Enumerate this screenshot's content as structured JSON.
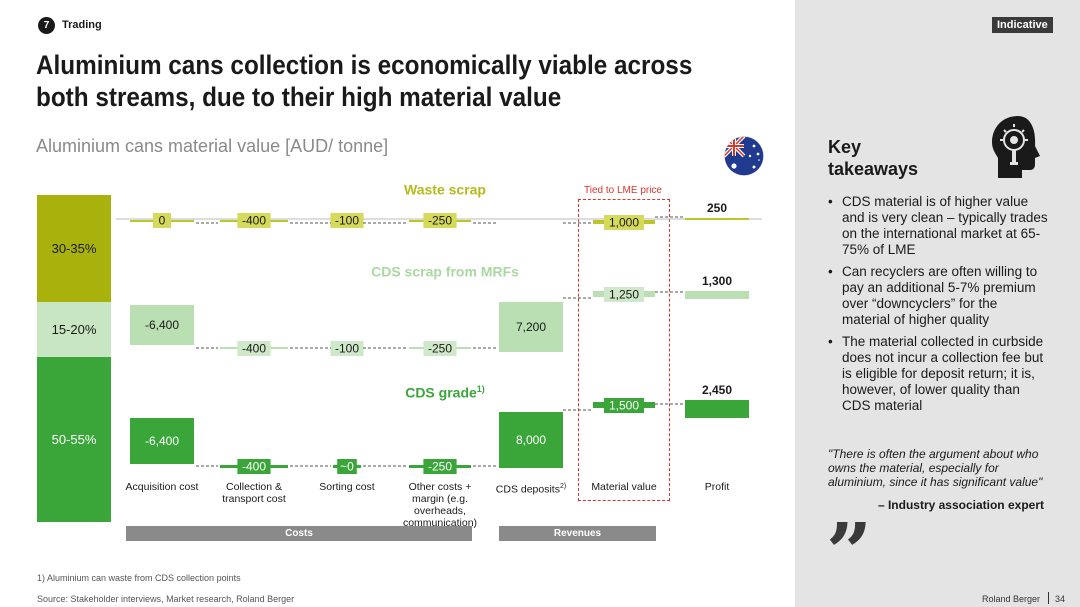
{
  "header": {
    "step_number": "7",
    "section": "Trading",
    "title": "Aluminium cans collection is economically viable across both streams, due to their high material value",
    "subtitle": "Aluminium cans material value [AUD/ tonne]",
    "indicative_label": "Indicative",
    "flag_icon": "australia-flag-icon"
  },
  "chart_data": {
    "type": "waterfall",
    "title": "",
    "ylabel": "AUD/ tonne",
    "categories": [
      "Acquisition cost",
      "Collection & transport cost",
      "Sorting cost",
      "Other costs + margin (e.g. overheads, communication)",
      "CDS deposits",
      "Material value",
      "Profit"
    ],
    "category_superscripts": [
      "",
      "",
      "",
      "",
      "2)",
      "",
      ""
    ],
    "series": [
      {
        "name": "Waste scrap",
        "superscript": "",
        "values": [
          0,
          -400,
          -100,
          -250,
          null,
          1000,
          250
        ],
        "labels": [
          "0",
          "-400",
          "-100",
          "-250",
          "",
          "1,000",
          "250"
        ],
        "color": "#bcc52a"
      },
      {
        "name": "CDS scrap from MRFs",
        "superscript": "",
        "values": [
          -6400,
          -400,
          -100,
          -250,
          7200,
          1250,
          1300
        ],
        "labels": [
          "-6,400",
          "-400",
          "-100",
          "-250",
          "7,200",
          "1,250",
          "1,300"
        ],
        "color": "#b9dfb2"
      },
      {
        "name": "CDS grade",
        "superscript": "1)",
        "values": [
          -6400,
          -400,
          0,
          -250,
          8000,
          1500,
          2450
        ],
        "labels": [
          "-6,400",
          "-400",
          "~0",
          "-250",
          "8,000",
          "1,500",
          "2,450"
        ],
        "color": "#3aa63a"
      }
    ],
    "bands": [
      {
        "label": "30-35%",
        "color": "#a9b10d"
      },
      {
        "label": "15-20%",
        "color": "#c8e6c2"
      },
      {
        "label": "50-55%",
        "color": "#3aa63a"
      }
    ],
    "groups": [
      {
        "label": "Costs"
      },
      {
        "label": "Revenues"
      }
    ],
    "annotation": "Tied to LME price"
  },
  "takeaways": {
    "title_line1": "Key",
    "title_line2": "takeaways",
    "icon": "head-lightbulb-icon",
    "bullets": [
      "CDS material is of higher value and is very clean – typically trades on the international market at 65-75% of LME",
      "Can recyclers are often willing to pay an additional 5-7% premium over “downcyclers” for the material of higher quality",
      "The material collected in curbside does not incur a collection fee but is eligible for deposit return; it is, however, of lower quality than CDS material"
    ],
    "quote": "\"There is often the argument about who owns the material, especially for aluminium, since it has significant value\"",
    "quote_author": "– Industry association expert",
    "quote_icon": "quotation-mark-icon",
    "quote_glyph": "”"
  },
  "footer": {
    "footnote": "1) Aluminium can waste from CDS collection points",
    "source": "Source: Stakeholder interviews, Market research, Roland Berger",
    "brand": "Roland Berger",
    "page": "34"
  }
}
